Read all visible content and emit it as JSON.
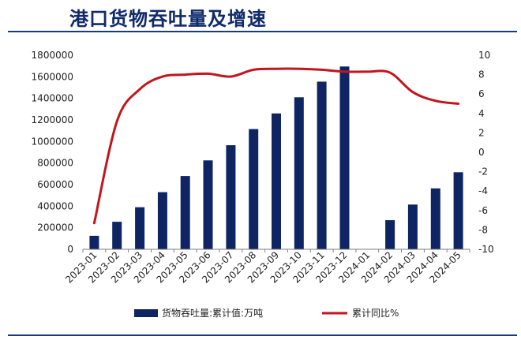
{
  "chart_data": {
    "type": "bar",
    "title": "港口货物吞吐量及增速",
    "categories": [
      "2023-01",
      "2023-02",
      "2023-03",
      "2023-04",
      "2023-05",
      "2023-06",
      "2023-07",
      "2023-08",
      "2023-09",
      "2023-10",
      "2023-11",
      "2023-12",
      "2024-01",
      "2024-02",
      "2024-03",
      "2024-04",
      "2024-05"
    ],
    "series": [
      {
        "name": "货物吞吐量:累计值:万吨",
        "type": "bar",
        "axis": "left",
        "values": [
          125000,
          255000,
          390000,
          530000,
          680000,
          825000,
          965000,
          1115000,
          1260000,
          1410000,
          1555000,
          1695000,
          null,
          270000,
          415000,
          565000,
          715000
        ]
      },
      {
        "name": "累计同比%",
        "type": "line",
        "axis": "right",
        "values": [
          -7.3,
          3.2,
          6.5,
          7.8,
          8.0,
          8.1,
          7.8,
          8.5,
          8.6,
          8.6,
          8.5,
          8.3,
          8.3,
          8.2,
          6.2,
          5.3,
          5.0
        ]
      }
    ],
    "ylim_left": [
      0,
      1800000
    ],
    "yticks_left": [
      0,
      200000,
      400000,
      600000,
      800000,
      1000000,
      1200000,
      1400000,
      1600000,
      1800000
    ],
    "ylim_right": [
      -10,
      10
    ],
    "yticks_right": [
      -10,
      -8,
      -6,
      -4,
      -2,
      0,
      2,
      4,
      6,
      8,
      10
    ],
    "grid": false,
    "legend_position": "bottom",
    "colors": {
      "bar": "#0f2563",
      "line": "#c0161c",
      "title": "#0f2a6b",
      "rule": "#1a3a7a"
    }
  }
}
